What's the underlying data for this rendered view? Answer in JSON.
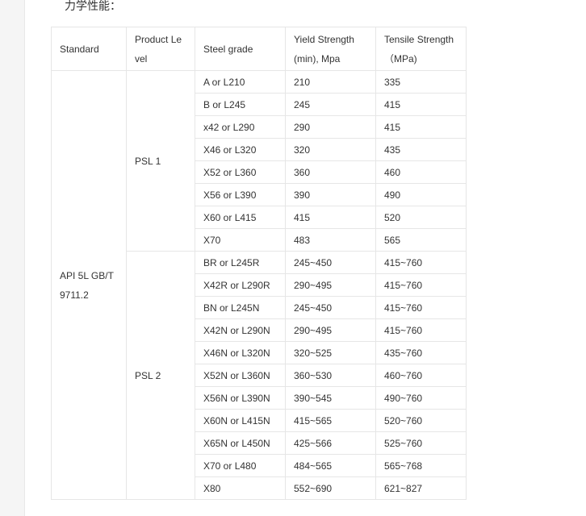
{
  "title": "力学性能：",
  "headers": [
    "Standard",
    "Product Le vel",
    "Steel grade",
    "Yield Strength (min), Mpa",
    "Tensile Strength （MPa)"
  ],
  "standard": "API 5L GB/T 9711.2",
  "levels": [
    "PSL 1",
    "PSL 2"
  ],
  "rows": [
    [
      "A or L210",
      "210",
      "335"
    ],
    [
      "B or L245",
      "245",
      "415"
    ],
    [
      "x42 or L290",
      "290",
      "415"
    ],
    [
      "X46 or L320",
      "320",
      "435"
    ],
    [
      "X52 or L360",
      "360",
      "460"
    ],
    [
      "X56 or L390",
      "390",
      "490"
    ],
    [
      "X60 or L415",
      "415",
      "520"
    ],
    [
      "X70",
      "483",
      "565"
    ],
    [
      "BR or L245R",
      "245~450",
      "415~760"
    ],
    [
      "X42R or L290R",
      "290~495",
      "415~760"
    ],
    [
      "BN or L245N",
      "245~450",
      "415~760"
    ],
    [
      "X42N or L290N",
      "290~495",
      "415~760"
    ],
    [
      "X46N or L320N",
      "320~525",
      "435~760"
    ],
    [
      "X52N or L360N",
      "360~530",
      "460~760"
    ],
    [
      "X56N or L390N",
      "390~545",
      "490~760"
    ],
    [
      "X60N or L415N",
      "415~565",
      "520~760"
    ],
    [
      "X65N or L450N",
      "425~566",
      "525~760"
    ],
    [
      "X70 or L480",
      "484~565",
      "565~768"
    ],
    [
      "X80",
      "552~690",
      "621~827"
    ]
  ]
}
